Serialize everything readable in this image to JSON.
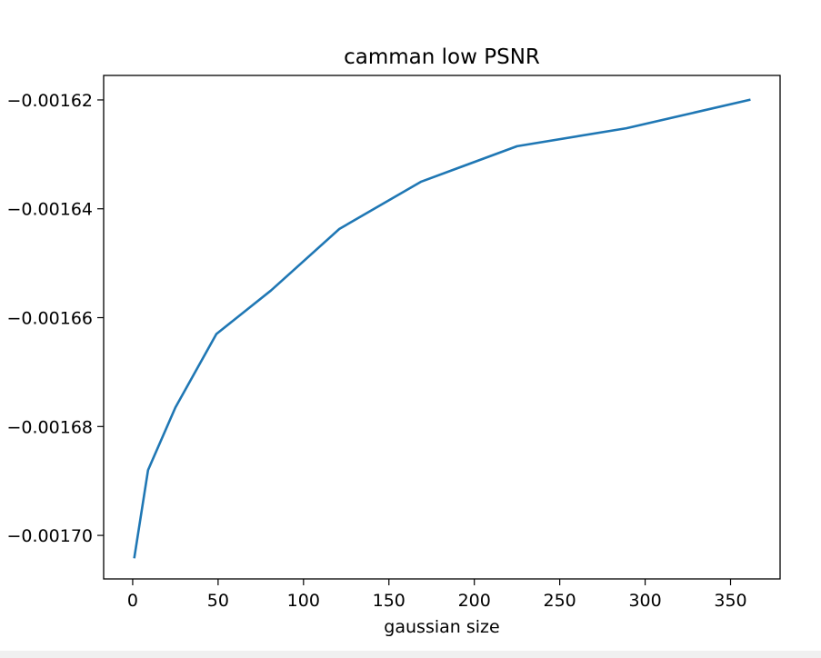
{
  "chart_data": {
    "type": "line",
    "title": "camman low PSNR",
    "xlabel": "gaussian size",
    "ylabel": "",
    "xlim": [
      -17,
      379
    ],
    "ylim": [
      -0.001708,
      -0.0016155
    ],
    "xticks": [
      0,
      50,
      100,
      150,
      200,
      250,
      300,
      350
    ],
    "xtick_labels": [
      "0",
      "50",
      "100",
      "150",
      "200",
      "250",
      "300",
      "350"
    ],
    "yticks": [
      -0.0017,
      -0.00168,
      -0.00166,
      -0.00164,
      -0.00162
    ],
    "ytick_labels": [
      "−0.00170",
      "−0.00168",
      "−0.00166",
      "−0.00164",
      "−0.00162"
    ],
    "grid": false,
    "series": [
      {
        "color": "#1f77b4",
        "x": [
          1,
          9,
          25,
          49,
          81,
          121,
          169,
          225,
          289,
          361
        ],
        "y": [
          -0.001704,
          -0.001688,
          -0.0016765,
          -0.001663,
          -0.001655,
          -0.0016437,
          -0.001635,
          -0.0016285,
          -0.0016252,
          -0.00162
        ]
      }
    ]
  }
}
